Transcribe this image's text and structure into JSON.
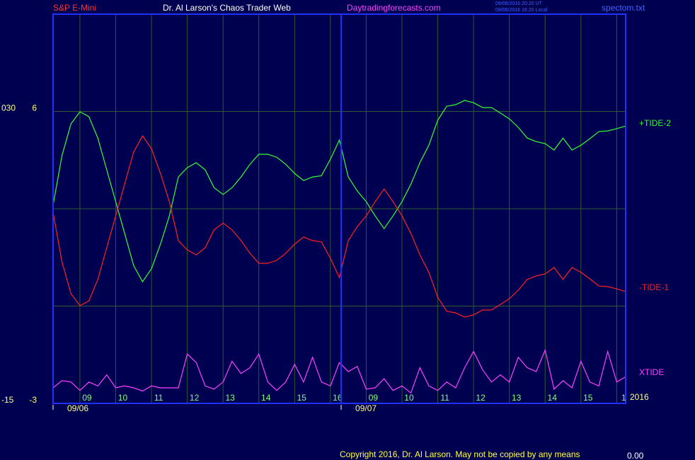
{
  "chart_data": {
    "type": "line",
    "header": {
      "symbol": "S&P E-Mini",
      "title": "Dr. Al Larson's Chaos Trader Web",
      "site": "Daytradingforecasts.com",
      "timestamps": [
        "09/06/2016 20:20 UT",
        "09/06/2016 16:20 Local"
      ],
      "file": "spectom.txt"
    },
    "footer": {
      "copyright": "Copyright 2016, Dr. Al Larson. May not be copied by any means",
      "value": "0.00"
    },
    "year_label": "2016",
    "x": [
      -0.75,
      -0.5,
      -0.25,
      0,
      0.25,
      0.5,
      0.75,
      1,
      1.25,
      1.5,
      1.75,
      2,
      2.25,
      2.5,
      2.75,
      3,
      3.25,
      3.5,
      3.75,
      4,
      4.25,
      4.5,
      4.75,
      5,
      5.25,
      5.5,
      5.75,
      6,
      6.25,
      6.5,
      6.75,
      7,
      7.25,
      7.5,
      7.75,
      8,
      8.25,
      8.5,
      8.75,
      9,
      9.25,
      9.5,
      9.75,
      10,
      10.25,
      10.5,
      10.75,
      11,
      11.25,
      11.5,
      11.75,
      12,
      12.25,
      12.5,
      12.75,
      13,
      13.25,
      13.5,
      13.75,
      14,
      14.25,
      14.5,
      14.75,
      15,
      15.25
    ],
    "xlim": [
      -0.75,
      15.25
    ],
    "xticks": [
      {
        "value": 0,
        "label": "09"
      },
      {
        "value": 1,
        "label": "10"
      },
      {
        "value": 2,
        "label": "11"
      },
      {
        "value": 3,
        "label": "12"
      },
      {
        "value": 4,
        "label": "13"
      },
      {
        "value": 5,
        "label": "14"
      },
      {
        "value": 6,
        "label": "15"
      },
      {
        "value": 7,
        "label": "16"
      },
      {
        "value": 8,
        "label": "09"
      },
      {
        "value": 9,
        "label": "10"
      },
      {
        "value": 10,
        "label": "11"
      },
      {
        "value": 11,
        "label": "12"
      },
      {
        "value": 12,
        "label": "13"
      },
      {
        "value": 13,
        "label": "14"
      },
      {
        "value": 14,
        "label": "15"
      },
      {
        "value": 15,
        "label": "1"
      }
    ],
    "days": [
      {
        "x": -0.75,
        "label": "09/06"
      },
      {
        "x": 7.3,
        "label": "09/07"
      }
    ],
    "ylim": [
      -3,
      9
    ],
    "yticks": [
      6,
      -3
    ],
    "ygrid": [
      0,
      3,
      6
    ],
    "y2lim": [
      -15,
      45
    ],
    "y2ticks": [
      {
        "value": 30,
        "label": "030"
      },
      -15
    ],
    "grid": true,
    "series": [
      {
        "name": "+TIDE-2",
        "color": "#33ff33",
        "values": [
          3.11,
          4.64,
          5.62,
          5.99,
          5.84,
          5.18,
          4.2,
          3.22,
          2.24,
          1.25,
          0.75,
          1.15,
          1.91,
          2.78,
          3.98,
          4.27,
          4.42,
          4.2,
          3.65,
          3.44,
          3.65,
          3.98,
          4.37,
          4.68,
          4.68,
          4.59,
          4.37,
          4.09,
          3.87,
          3.98,
          4.02,
          4.53,
          5.12,
          3.98,
          3.55,
          3.22,
          2.78,
          2.39,
          2.78,
          3.22,
          3.76,
          4.42,
          4.96,
          5.73,
          6.16,
          6.21,
          6.34,
          6.27,
          6.12,
          6.12,
          5.95,
          5.77,
          5.51,
          5.18,
          5.07,
          5.01,
          4.81,
          5.18,
          4.81,
          4.96,
          5.16,
          5.38,
          5.4,
          5.47,
          5.55
        ]
      },
      {
        "name": "-TIDE-1",
        "color": "#ff2020",
        "values": [
          2.89,
          1.36,
          0.38,
          0.01,
          0.16,
          0.82,
          1.8,
          2.78,
          3.76,
          4.75,
          5.25,
          4.85,
          4.09,
          3.22,
          2.02,
          1.73,
          1.58,
          1.8,
          2.35,
          2.56,
          2.35,
          2.02,
          1.63,
          1.32,
          1.32,
          1.41,
          1.63,
          1.91,
          2.13,
          2.02,
          1.98,
          1.47,
          0.88,
          2.02,
          2.45,
          2.78,
          3.22,
          3.61,
          3.22,
          2.78,
          2.24,
          1.58,
          1.04,
          0.27,
          -0.16,
          -0.21,
          -0.34,
          -0.27,
          -0.12,
          -0.12,
          0.05,
          0.23,
          0.49,
          0.82,
          0.93,
          0.99,
          1.19,
          0.82,
          1.19,
          1.04,
          0.84,
          0.62,
          0.6,
          0.53,
          0.45
        ]
      },
      {
        "name": "XTIDE",
        "color": "#ff40ff",
        "axis": "y2",
        "values": [
          -12.6,
          -11.5,
          -11.7,
          -13.0,
          -11.7,
          -12.3,
          -10.6,
          -12.6,
          -12.3,
          -12.6,
          -13.1,
          -12.3,
          -12.6,
          -12.6,
          -12.6,
          -7.4,
          -8.7,
          -12.3,
          -12.8,
          -11.7,
          -8.5,
          -10.4,
          -9.5,
          -7.4,
          -11.7,
          -13.0,
          -11.7,
          -9.0,
          -11.7,
          -7.9,
          -11.7,
          -12.3,
          -8.7,
          -10.1,
          -9.3,
          -12.8,
          -12.6,
          -11.2,
          -13.0,
          -12.3,
          -13.4,
          -9.5,
          -12.3,
          -13.0,
          -11.7,
          -12.6,
          -9.5,
          -7.0,
          -9.8,
          -11.7,
          -10.6,
          -11.7,
          -7.9,
          -9.5,
          -10.1,
          -6.8,
          -12.8,
          -11.5,
          -12.6,
          -8.5,
          -11.7,
          -12.3,
          -7.0,
          -11.7,
          -10.9
        ]
      }
    ]
  }
}
